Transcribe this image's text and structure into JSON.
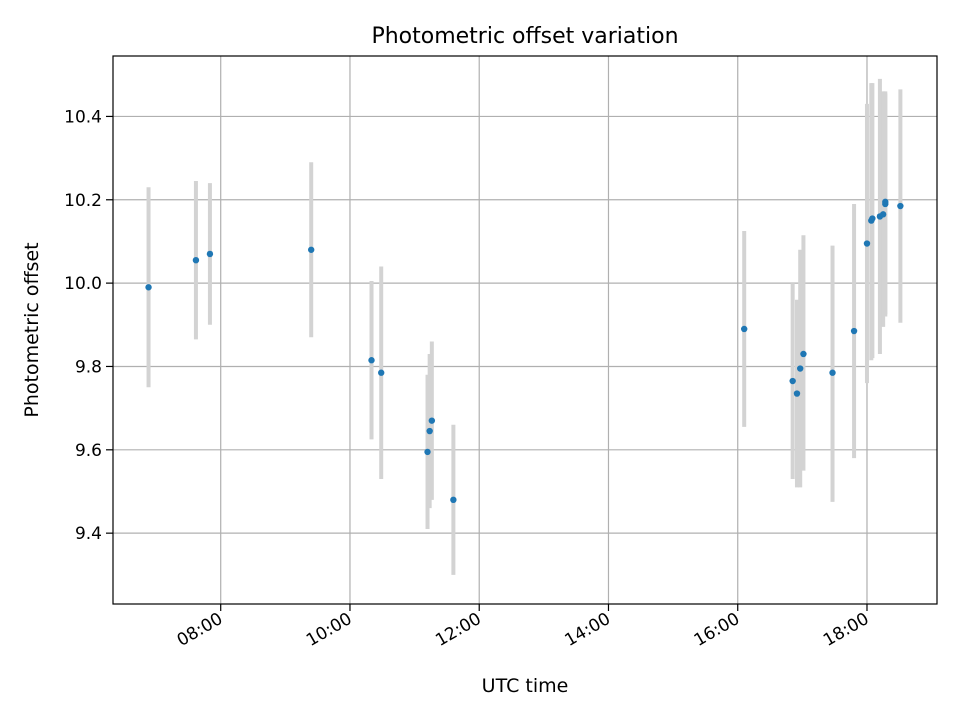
{
  "chart_data": {
    "type": "scatter",
    "title": "Photometric offset variation",
    "xlabel": "UTC time",
    "ylabel": "Photometric offset",
    "xlim": [
      "06:20",
      "19:05"
    ],
    "ylim": [
      9.23,
      10.545
    ],
    "grid": true,
    "x_ticks": [
      "08:00",
      "10:00",
      "12:00",
      "14:00",
      "16:00",
      "18:00"
    ],
    "y_ticks": [
      9.4,
      9.6,
      9.8,
      10.0,
      10.2,
      10.4
    ],
    "y_tick_labels": [
      "9.4",
      "9.6",
      "9.8",
      "10.0",
      "10.2",
      "10.4"
    ],
    "marker_color": "#1f77b4",
    "errorbar_color": "#d3d3d3",
    "points": [
      {
        "x": "06:53",
        "y": 9.99,
        "lo": 9.75,
        "hi": 10.23
      },
      {
        "x": "07:37",
        "y": 10.055,
        "lo": 9.865,
        "hi": 10.245
      },
      {
        "x": "07:50",
        "y": 10.07,
        "lo": 9.9,
        "hi": 10.24
      },
      {
        "x": "09:24",
        "y": 10.08,
        "lo": 9.87,
        "hi": 10.29
      },
      {
        "x": "10:20",
        "y": 9.815,
        "lo": 9.625,
        "hi": 10.005
      },
      {
        "x": "10:29",
        "y": 9.785,
        "lo": 9.53,
        "hi": 10.04
      },
      {
        "x": "11:12",
        "y": 9.595,
        "lo": 9.41,
        "hi": 9.78
      },
      {
        "x": "11:14",
        "y": 9.645,
        "lo": 9.46,
        "hi": 9.83
      },
      {
        "x": "11:16",
        "y": 9.67,
        "lo": 9.48,
        "hi": 9.86
      },
      {
        "x": "11:36",
        "y": 9.48,
        "lo": 9.3,
        "hi": 9.66
      },
      {
        "x": "16:06",
        "y": 9.89,
        "lo": 9.655,
        "hi": 10.125
      },
      {
        "x": "16:51",
        "y": 9.765,
        "lo": 9.53,
        "hi": 10.0
      },
      {
        "x": "16:55",
        "y": 9.735,
        "lo": 9.51,
        "hi": 9.96
      },
      {
        "x": "16:58",
        "y": 9.795,
        "lo": 9.51,
        "hi": 10.08
      },
      {
        "x": "17:01",
        "y": 9.83,
        "lo": 9.55,
        "hi": 10.115
      },
      {
        "x": "17:28",
        "y": 9.785,
        "lo": 9.475,
        "hi": 10.09
      },
      {
        "x": "17:48",
        "y": 9.885,
        "lo": 9.58,
        "hi": 10.19
      },
      {
        "x": "18:00",
        "y": 10.095,
        "lo": 9.76,
        "hi": 10.43
      },
      {
        "x": "18:04",
        "y": 10.15,
        "lo": 9.815,
        "hi": 10.48
      },
      {
        "x": "18:05",
        "y": 10.155,
        "lo": 9.82,
        "hi": 10.48
      },
      {
        "x": "18:12",
        "y": 10.16,
        "lo": 9.83,
        "hi": 10.49
      },
      {
        "x": "18:15",
        "y": 10.165,
        "lo": 9.895,
        "hi": 10.46
      },
      {
        "x": "18:17",
        "y": 10.19,
        "lo": 9.92,
        "hi": 10.455
      },
      {
        "x": "18:17",
        "y": 10.195,
        "lo": 9.925,
        "hi": 10.46
      },
      {
        "x": "18:31",
        "y": 10.185,
        "lo": 9.905,
        "hi": 10.465
      }
    ]
  }
}
